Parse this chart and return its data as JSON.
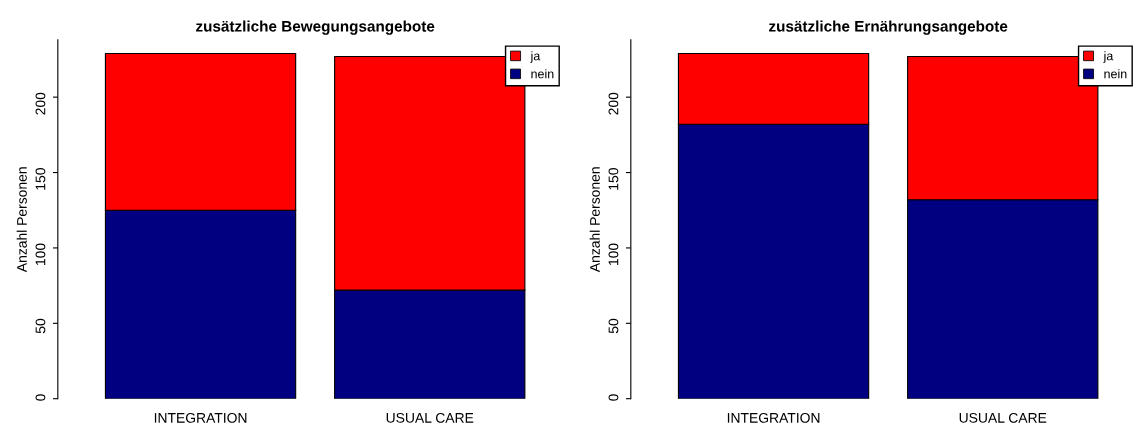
{
  "chart_data": [
    {
      "type": "bar",
      "title": "zusätzliche Bewegungsangebote",
      "ylabel": "Anzahl Personen",
      "categories": [
        "INTEGRATION",
        "USUAL CARE"
      ],
      "stacked": true,
      "series": [
        {
          "name": "nein",
          "color": "#000080",
          "values": [
            125,
            72
          ]
        },
        {
          "name": "ja",
          "color": "#ff0000",
          "values": [
            104,
            155
          ]
        }
      ],
      "ylim": [
        0,
        238
      ],
      "yticks": [
        0,
        50,
        100,
        150,
        200
      ],
      "legend": "top right",
      "grid": false
    },
    {
      "type": "bar",
      "title": "zusätzliche Ernährungsangebote",
      "ylabel": "Anzahl Personen",
      "categories": [
        "INTEGRATION",
        "USUAL CARE"
      ],
      "stacked": true,
      "series": [
        {
          "name": "nein",
          "color": "#000080",
          "values": [
            182,
            132
          ]
        },
        {
          "name": "ja",
          "color": "#ff0000",
          "values": [
            47,
            95
          ]
        }
      ],
      "ylim": [
        0,
        238
      ],
      "yticks": [
        0,
        50,
        100,
        150,
        200
      ],
      "legend": "top right",
      "grid": false
    }
  ]
}
